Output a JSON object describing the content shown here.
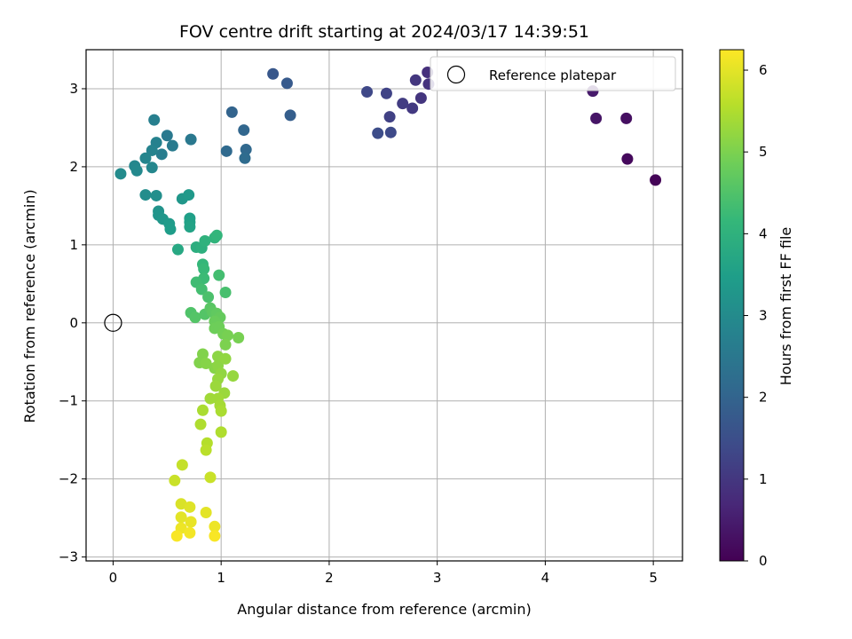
{
  "chart_data": {
    "type": "scatter",
    "title": "FOV centre drift starting at 2024/03/17 14:39:51",
    "xlabel": "Angular distance from reference (arcmin)",
    "ylabel": "Rotation from reference (arcmin)",
    "xlim": [
      -0.25,
      5.27
    ],
    "ylim": [
      -3.05,
      3.5
    ],
    "xticks": [
      0,
      1,
      2,
      3,
      4,
      5
    ],
    "yticks": [
      -3,
      -2,
      -1,
      0,
      1,
      2,
      3
    ],
    "grid": true,
    "colormap": "viridis",
    "colorbar": {
      "label": "Hours from first FF file",
      "range": [
        0,
        6.25
      ],
      "ticks": [
        0,
        1,
        2,
        3,
        4,
        5,
        6
      ]
    },
    "legend": {
      "position": "top-right",
      "entries": [
        "Reference platepar"
      ]
    },
    "reference_point": {
      "x": 0,
      "y": 0
    },
    "points": [
      {
        "x": 5.02,
        "y": 1.83,
        "t": 0.05
      },
      {
        "x": 4.76,
        "y": 2.1,
        "t": 0.15
      },
      {
        "x": 4.75,
        "y": 2.62,
        "t": 0.25
      },
      {
        "x": 4.47,
        "y": 2.62,
        "t": 0.35
      },
      {
        "x": 4.44,
        "y": 2.97,
        "t": 0.45
      },
      {
        "x": 2.91,
        "y": 3.21,
        "t": 0.85
      },
      {
        "x": 2.92,
        "y": 3.06,
        "t": 0.9
      },
      {
        "x": 2.85,
        "y": 2.88,
        "t": 0.95
      },
      {
        "x": 2.8,
        "y": 3.11,
        "t": 1.0
      },
      {
        "x": 2.77,
        "y": 2.75,
        "t": 1.05
      },
      {
        "x": 2.68,
        "y": 2.81,
        "t": 1.1
      },
      {
        "x": 2.56,
        "y": 2.64,
        "t": 1.2
      },
      {
        "x": 2.53,
        "y": 2.94,
        "t": 1.25
      },
      {
        "x": 2.35,
        "y": 2.96,
        "t": 1.35
      },
      {
        "x": 2.57,
        "y": 2.44,
        "t": 1.4
      },
      {
        "x": 2.45,
        "y": 2.43,
        "t": 1.45
      },
      {
        "x": 1.48,
        "y": 3.19,
        "t": 1.7
      },
      {
        "x": 1.61,
        "y": 3.07,
        "t": 1.75
      },
      {
        "x": 1.64,
        "y": 2.66,
        "t": 1.85
      },
      {
        "x": 1.1,
        "y": 2.7,
        "t": 2.0
      },
      {
        "x": 1.21,
        "y": 2.47,
        "t": 2.05
      },
      {
        "x": 1.05,
        "y": 2.2,
        "t": 2.15
      },
      {
        "x": 1.23,
        "y": 2.22,
        "t": 2.1
      },
      {
        "x": 1.22,
        "y": 2.11,
        "t": 2.2
      },
      {
        "x": 0.72,
        "y": 2.35,
        "t": 2.5
      },
      {
        "x": 0.55,
        "y": 2.27,
        "t": 2.6
      },
      {
        "x": 0.5,
        "y": 2.4,
        "t": 2.55
      },
      {
        "x": 0.45,
        "y": 2.16,
        "t": 2.65
      },
      {
        "x": 0.38,
        "y": 2.6,
        "t": 2.7
      },
      {
        "x": 0.4,
        "y": 2.31,
        "t": 2.75
      },
      {
        "x": 0.36,
        "y": 2.21,
        "t": 2.8
      },
      {
        "x": 0.3,
        "y": 2.11,
        "t": 2.85
      },
      {
        "x": 0.36,
        "y": 1.99,
        "t": 2.9
      },
      {
        "x": 0.2,
        "y": 2.01,
        "t": 2.9
      },
      {
        "x": 0.22,
        "y": 1.95,
        "t": 2.95
      },
      {
        "x": 0.07,
        "y": 1.91,
        "t": 3.0
      },
      {
        "x": 0.3,
        "y": 1.64,
        "t": 3.05
      },
      {
        "x": 0.4,
        "y": 1.63,
        "t": 3.1
      },
      {
        "x": 0.42,
        "y": 1.43,
        "t": 3.2
      },
      {
        "x": 0.42,
        "y": 1.38,
        "t": 3.25
      },
      {
        "x": 0.46,
        "y": 1.33,
        "t": 3.3
      },
      {
        "x": 0.52,
        "y": 1.27,
        "t": 3.4
      },
      {
        "x": 0.53,
        "y": 1.2,
        "t": 3.45
      },
      {
        "x": 0.64,
        "y": 1.59,
        "t": 3.3
      },
      {
        "x": 0.7,
        "y": 1.64,
        "t": 3.35
      },
      {
        "x": 0.71,
        "y": 1.34,
        "t": 3.5
      },
      {
        "x": 0.71,
        "y": 1.29,
        "t": 3.55
      },
      {
        "x": 0.71,
        "y": 1.23,
        "t": 3.6
      },
      {
        "x": 0.6,
        "y": 0.94,
        "t": 3.75
      },
      {
        "x": 0.77,
        "y": 0.97,
        "t": 3.9
      },
      {
        "x": 0.82,
        "y": 0.96,
        "t": 3.95
      },
      {
        "x": 0.85,
        "y": 1.05,
        "t": 4.0
      },
      {
        "x": 0.94,
        "y": 1.09,
        "t": 4.05
      },
      {
        "x": 0.96,
        "y": 1.12,
        "t": 4.1
      },
      {
        "x": 0.83,
        "y": 0.75,
        "t": 4.15
      },
      {
        "x": 0.84,
        "y": 0.69,
        "t": 4.2
      },
      {
        "x": 0.84,
        "y": 0.57,
        "t": 4.25
      },
      {
        "x": 0.77,
        "y": 0.52,
        "t": 4.3
      },
      {
        "x": 0.82,
        "y": 0.43,
        "t": 4.35
      },
      {
        "x": 0.98,
        "y": 0.61,
        "t": 4.35
      },
      {
        "x": 1.04,
        "y": 0.39,
        "t": 4.4
      },
      {
        "x": 0.88,
        "y": 0.33,
        "t": 4.45
      },
      {
        "x": 0.72,
        "y": 0.13,
        "t": 4.5
      },
      {
        "x": 0.76,
        "y": 0.07,
        "t": 4.55
      },
      {
        "x": 0.85,
        "y": 0.11,
        "t": 4.55
      },
      {
        "x": 0.9,
        "y": 0.19,
        "t": 4.6
      },
      {
        "x": 0.92,
        "y": 0.14,
        "t": 4.65
      },
      {
        "x": 0.96,
        "y": 0.12,
        "t": 4.7
      },
      {
        "x": 0.99,
        "y": 0.07,
        "t": 4.75
      },
      {
        "x": 0.94,
        "y": 0.02,
        "t": 4.8
      },
      {
        "x": 0.94,
        "y": -0.07,
        "t": 4.85
      },
      {
        "x": 0.98,
        "y": -0.05,
        "t": 4.85
      },
      {
        "x": 1.02,
        "y": -0.14,
        "t": 4.9
      },
      {
        "x": 1.06,
        "y": -0.16,
        "t": 4.95
      },
      {
        "x": 1.16,
        "y": -0.19,
        "t": 4.95
      },
      {
        "x": 1.04,
        "y": -0.28,
        "t": 5.0
      },
      {
        "x": 0.83,
        "y": -0.4,
        "t": 5.05
      },
      {
        "x": 0.8,
        "y": -0.51,
        "t": 5.05
      },
      {
        "x": 0.86,
        "y": -0.52,
        "t": 5.1
      },
      {
        "x": 0.94,
        "y": -0.58,
        "t": 5.1
      },
      {
        "x": 0.97,
        "y": -0.55,
        "t": 5.15
      },
      {
        "x": 0.97,
        "y": -0.43,
        "t": 5.15
      },
      {
        "x": 1.04,
        "y": -0.46,
        "t": 5.2
      },
      {
        "x": 1.0,
        "y": -0.65,
        "t": 5.2
      },
      {
        "x": 1.11,
        "y": -0.68,
        "t": 5.25
      },
      {
        "x": 0.97,
        "y": -0.72,
        "t": 5.25
      },
      {
        "x": 0.95,
        "y": -0.81,
        "t": 5.3
      },
      {
        "x": 1.03,
        "y": -0.9,
        "t": 5.3
      },
      {
        "x": 0.9,
        "y": -0.97,
        "t": 5.35
      },
      {
        "x": 0.97,
        "y": -0.97,
        "t": 5.35
      },
      {
        "x": 0.99,
        "y": -1.06,
        "t": 5.4
      },
      {
        "x": 1.0,
        "y": -1.13,
        "t": 5.45
      },
      {
        "x": 0.83,
        "y": -1.12,
        "t": 5.45
      },
      {
        "x": 0.81,
        "y": -1.3,
        "t": 5.5
      },
      {
        "x": 1.0,
        "y": -1.4,
        "t": 5.5
      },
      {
        "x": 0.87,
        "y": -1.54,
        "t": 5.55
      },
      {
        "x": 0.86,
        "y": -1.63,
        "t": 5.6
      },
      {
        "x": 0.64,
        "y": -1.82,
        "t": 5.7
      },
      {
        "x": 0.57,
        "y": -2.02,
        "t": 5.75
      },
      {
        "x": 0.9,
        "y": -1.98,
        "t": 5.75
      },
      {
        "x": 0.63,
        "y": -2.32,
        "t": 5.9
      },
      {
        "x": 0.71,
        "y": -2.36,
        "t": 5.95
      },
      {
        "x": 0.86,
        "y": -2.43,
        "t": 6.0
      },
      {
        "x": 0.63,
        "y": -2.49,
        "t": 6.0
      },
      {
        "x": 0.72,
        "y": -2.55,
        "t": 6.05
      },
      {
        "x": 0.94,
        "y": -2.61,
        "t": 6.1
      },
      {
        "x": 0.63,
        "y": -2.63,
        "t": 6.1
      },
      {
        "x": 0.71,
        "y": -2.69,
        "t": 6.15
      },
      {
        "x": 0.59,
        "y": -2.73,
        "t": 6.2
      },
      {
        "x": 0.94,
        "y": -2.73,
        "t": 6.2
      }
    ]
  }
}
